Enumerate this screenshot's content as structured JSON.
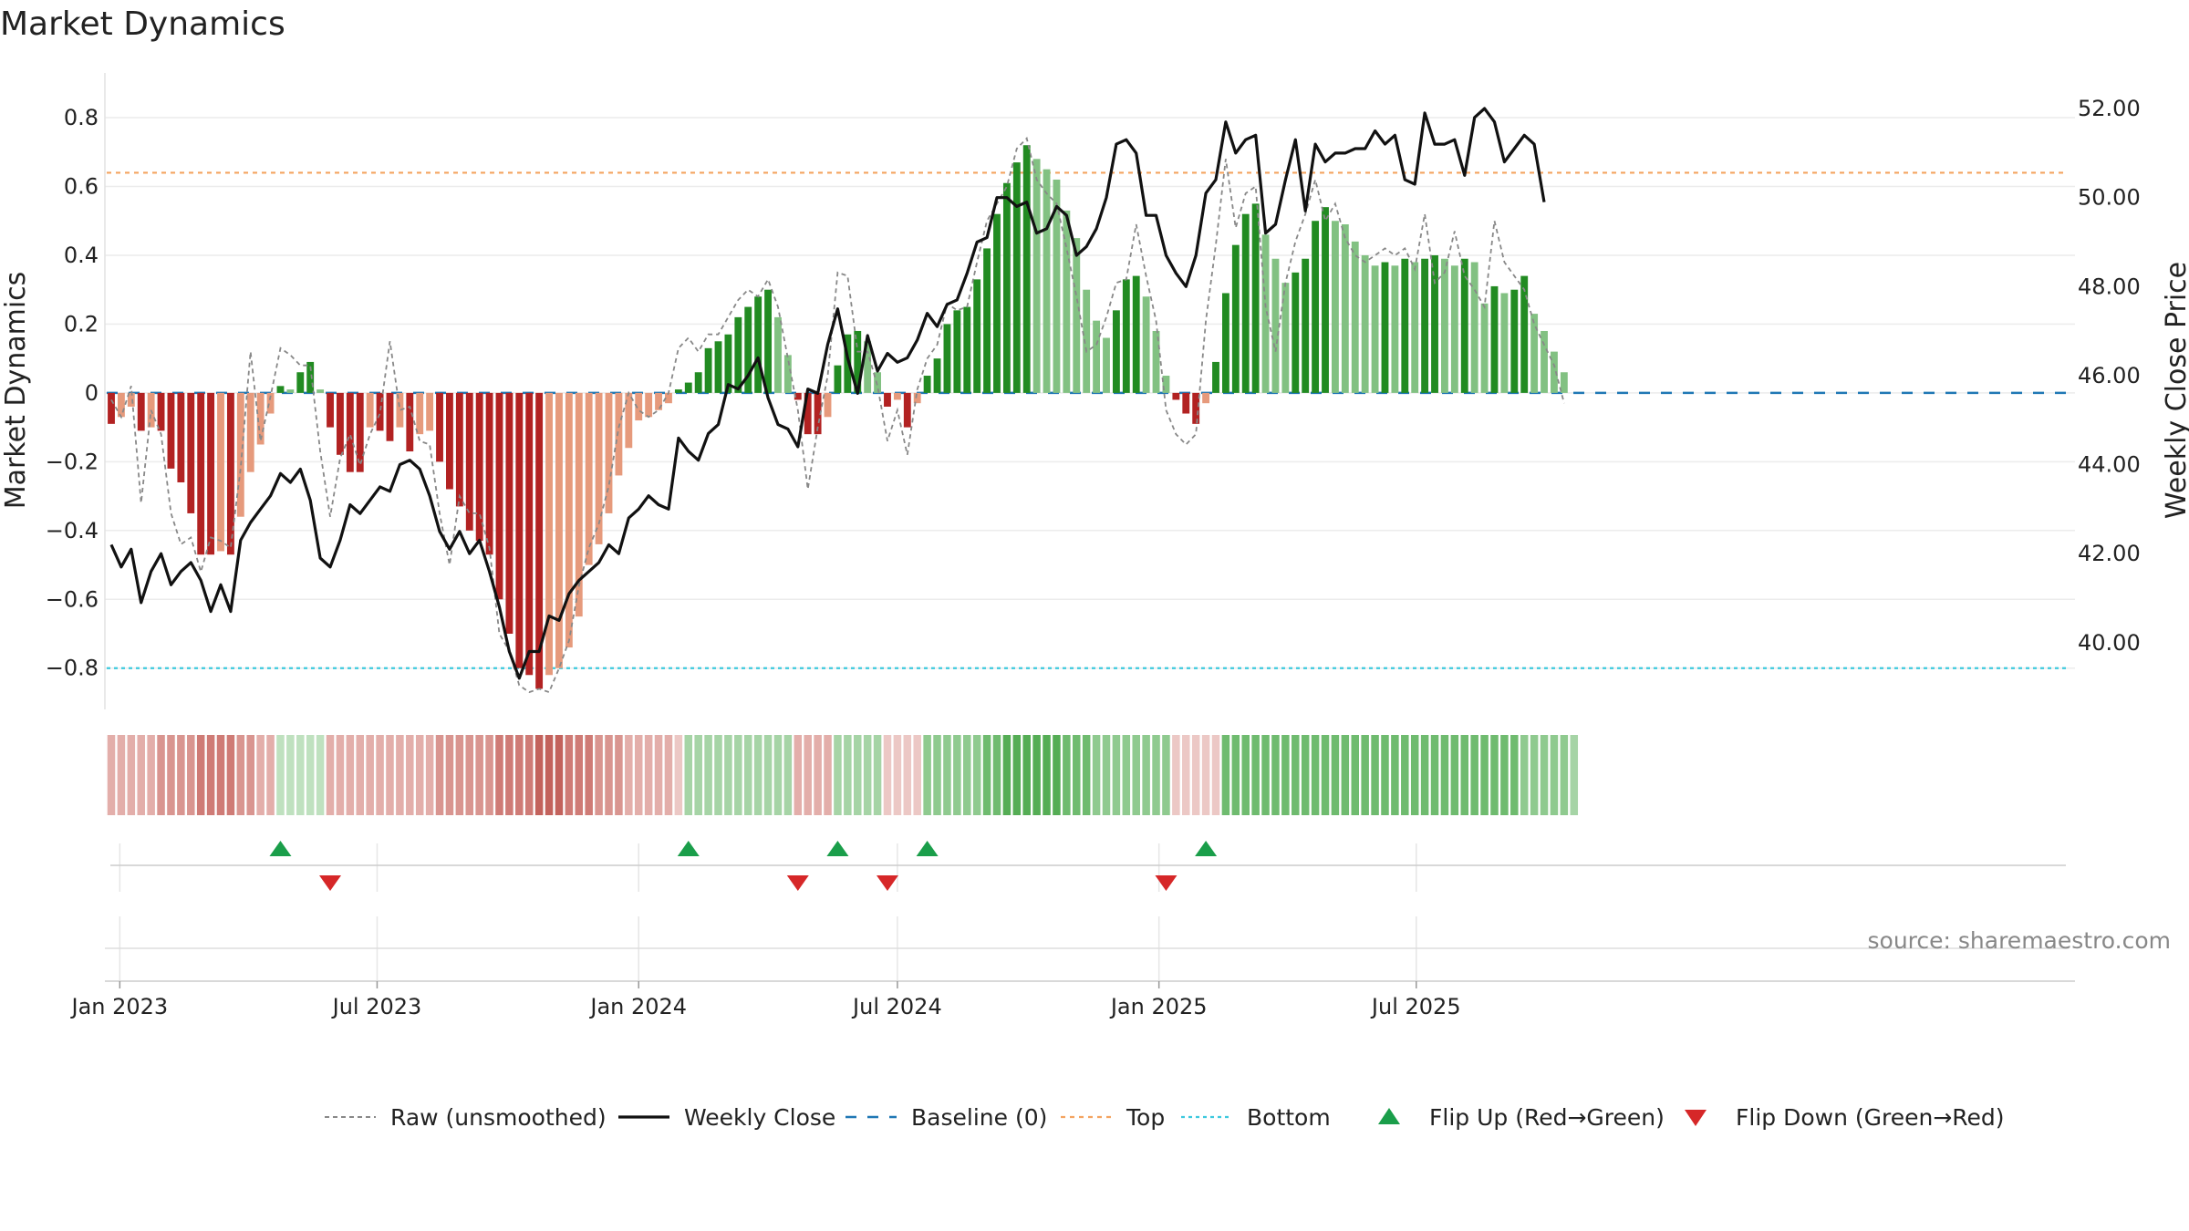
{
  "chart_data": {
    "type": "bar",
    "title": "Market Dynamics",
    "ylabel_left": "Market Dynamics",
    "ylabel_right": "Weekly Close Price",
    "source": "source: sharemaestro.com",
    "start_date": "2022-12-26",
    "left_ylim": [
      -0.92,
      0.93
    ],
    "left_ticks": [
      "0.8",
      "0.6",
      "0.4",
      "0.2",
      "0",
      "−0.2",
      "−0.4",
      "−0.6",
      "−0.8"
    ],
    "left_tick_values": [
      0.8,
      0.6,
      0.4,
      0.2,
      0,
      -0.2,
      -0.4,
      -0.6,
      -0.8
    ],
    "right_ylim": [
      38.5,
      52.8
    ],
    "right_ticks": [
      "52.00",
      "50.00",
      "48.00",
      "46.00",
      "44.00",
      "42.00",
      "40.00"
    ],
    "right_tick_values": [
      52,
      50,
      48,
      46,
      44,
      42,
      40
    ],
    "x_ticks": [
      {
        "label": "Jan 2023",
        "date": "2023-01-01"
      },
      {
        "label": "Jul 2023",
        "date": "2023-07-01"
      },
      {
        "label": "Jan 2024",
        "date": "2024-01-01"
      },
      {
        "label": "Jul 2024",
        "date": "2024-07-01"
      },
      {
        "label": "Jan 2025",
        "date": "2025-01-01"
      },
      {
        "label": "Jul 2025",
        "date": "2025-07-01"
      }
    ],
    "top_line": 0.64,
    "bottom_line": -0.8,
    "baseline": 0,
    "bars": [
      -0.09,
      -0.07,
      -0.04,
      -0.11,
      -0.1,
      -0.11,
      -0.22,
      -0.26,
      -0.35,
      -0.47,
      -0.47,
      -0.46,
      -0.47,
      -0.36,
      -0.23,
      -0.15,
      -0.06,
      0.02,
      0.01,
      0.06,
      0.09,
      0.01,
      -0.1,
      -0.18,
      -0.23,
      -0.23,
      -0.1,
      -0.11,
      -0.14,
      -0.1,
      -0.17,
      -0.12,
      -0.11,
      -0.2,
      -0.28,
      -0.33,
      -0.4,
      -0.43,
      -0.47,
      -0.6,
      -0.7,
      -0.8,
      -0.82,
      -0.86,
      -0.82,
      -0.8,
      -0.74,
      -0.65,
      -0.5,
      -0.44,
      -0.35,
      -0.24,
      -0.16,
      -0.08,
      -0.07,
      -0.05,
      -0.03,
      0.01,
      0.03,
      0.06,
      0.13,
      0.15,
      0.17,
      0.22,
      0.25,
      0.28,
      0.3,
      0.22,
      0.11,
      -0.02,
      -0.12,
      -0.12,
      -0.07,
      0.08,
      0.17,
      0.18,
      0.15,
      0.06,
      -0.04,
      -0.02,
      -0.1,
      -0.03,
      0.05,
      0.1,
      0.2,
      0.24,
      0.25,
      0.33,
      0.42,
      0.52,
      0.61,
      0.67,
      0.72,
      0.68,
      0.65,
      0.62,
      0.53,
      0.45,
      0.3,
      0.21,
      0.16,
      0.24,
      0.33,
      0.34,
      0.28,
      0.18,
      0.05,
      -0.02,
      -0.06,
      -0.09,
      -0.03,
      0.09,
      0.29,
      0.43,
      0.52,
      0.55,
      0.46,
      0.39,
      0.32,
      0.35,
      0.39,
      0.5,
      0.54,
      0.5,
      0.49,
      0.44,
      0.4,
      0.37,
      0.38,
      0.37,
      0.39,
      0.38,
      0.39,
      0.4,
      0.39,
      0.37,
      0.39,
      0.38,
      0.26,
      0.31,
      0.29,
      0.3,
      0.34,
      0.23,
      0.18,
      0.12,
      0.06
    ],
    "raw": [
      -0.02,
      -0.07,
      0.02,
      -0.32,
      -0.05,
      -0.12,
      -0.35,
      -0.44,
      -0.42,
      -0.52,
      -0.42,
      -0.43,
      -0.45,
      -0.22,
      0.12,
      -0.14,
      -0.01,
      0.13,
      0.11,
      0.08,
      0.08,
      -0.17,
      -0.36,
      -0.19,
      -0.12,
      -0.21,
      -0.12,
      -0.06,
      0.15,
      -0.05,
      -0.04,
      -0.14,
      -0.15,
      -0.35,
      -0.5,
      -0.3,
      -0.35,
      -0.35,
      -0.45,
      -0.7,
      -0.75,
      -0.85,
      -0.87,
      -0.86,
      -0.87,
      -0.8,
      -0.72,
      -0.56,
      -0.45,
      -0.38,
      -0.27,
      -0.1,
      0.0,
      -0.05,
      -0.07,
      -0.05,
      0.0,
      0.13,
      0.16,
      0.12,
      0.17,
      0.17,
      0.22,
      0.27,
      0.3,
      0.28,
      0.33,
      0.25,
      0.1,
      -0.05,
      -0.28,
      -0.1,
      0.05,
      0.35,
      0.34,
      0.12,
      0.12,
      0.02,
      -0.14,
      -0.05,
      -0.18,
      0.01,
      0.1,
      0.14,
      0.26,
      0.24,
      0.25,
      0.38,
      0.5,
      0.55,
      0.6,
      0.71,
      0.74,
      0.62,
      0.58,
      0.55,
      0.42,
      0.28,
      0.12,
      0.14,
      0.22,
      0.32,
      0.33,
      0.49,
      0.34,
      0.21,
      -0.05,
      -0.12,
      -0.15,
      -0.12,
      0.21,
      0.43,
      0.68,
      0.48,
      0.58,
      0.6,
      0.25,
      0.12,
      0.32,
      0.44,
      0.52,
      0.62,
      0.5,
      0.55,
      0.45,
      0.4,
      0.38,
      0.4,
      0.42,
      0.4,
      0.42,
      0.36,
      0.52,
      0.32,
      0.35,
      0.47,
      0.34,
      0.3,
      0.25,
      0.5,
      0.38,
      0.34,
      0.3,
      0.2,
      0.14,
      0.08,
      -0.03
    ],
    "close": [
      42.2,
      41.7,
      42.1,
      40.9,
      41.6,
      42.0,
      41.3,
      41.6,
      41.8,
      41.4,
      40.7,
      41.3,
      40.7,
      42.3,
      42.7,
      43.0,
      43.3,
      43.8,
      43.6,
      43.9,
      43.2,
      41.9,
      41.7,
      42.3,
      43.1,
      42.9,
      43.2,
      43.5,
      43.4,
      44.0,
      44.1,
      43.9,
      43.3,
      42.5,
      42.1,
      42.5,
      42.0,
      42.3,
      41.6,
      40.8,
      39.8,
      39.2,
      39.8,
      39.8,
      40.6,
      40.5,
      41.1,
      41.4,
      41.6,
      41.8,
      42.2,
      42.0,
      42.8,
      43.0,
      43.3,
      43.1,
      43.0,
      44.6,
      44.3,
      44.1,
      44.7,
      44.9,
      45.8,
      45.7,
      46.0,
      46.4,
      45.5,
      44.9,
      44.8,
      44.4,
      45.7,
      45.6,
      46.7,
      47.5,
      46.4,
      45.6,
      46.9,
      46.1,
      46.5,
      46.3,
      46.4,
      46.8,
      47.4,
      47.1,
      47.6,
      47.7,
      48.3,
      49.0,
      49.1,
      50.0,
      50.0,
      49.8,
      49.9,
      49.2,
      49.3,
      49.8,
      49.6,
      48.7,
      48.9,
      49.3,
      50.0,
      51.2,
      51.3,
      51.0,
      49.6,
      49.6,
      48.7,
      48.3,
      48.0,
      48.7,
      50.1,
      50.4,
      51.7,
      51.0,
      51.3,
      51.4,
      49.2,
      49.4,
      50.4,
      51.3,
      49.7,
      51.2,
      50.8,
      51.0,
      51.0,
      51.1,
      51.1,
      51.5,
      51.2,
      51.4,
      50.4,
      50.3,
      51.9,
      51.2,
      51.2,
      51.3,
      50.5,
      51.8,
      52.0,
      51.7,
      50.8,
      51.1,
      51.4,
      51.2,
      49.9
    ],
    "status_strip": [
      -2,
      -2,
      -2,
      -2,
      -2,
      -3,
      -3,
      -3,
      -3,
      -4,
      -4,
      -4,
      -4,
      -3,
      -3,
      -2,
      -2,
      1,
      1,
      1,
      1,
      1,
      -2,
      -2,
      -2,
      -2,
      -2,
      -2,
      -2,
      -2,
      -2,
      -2,
      -2,
      -3,
      -3,
      -3,
      -3,
      -3,
      -3,
      -4,
      -4,
      -4,
      -4,
      -5,
      -5,
      -5,
      -4,
      -4,
      -4,
      -3,
      -3,
      -3,
      -2,
      -2,
      -2,
      -2,
      -2,
      -1,
      2,
      2,
      2,
      2,
      2,
      2,
      2,
      2,
      2,
      2,
      2,
      -2,
      -2,
      -2,
      -2,
      2,
      2,
      2,
      2,
      2,
      -1,
      -1,
      -1,
      -1,
      3,
      3,
      3,
      3,
      3,
      3,
      4,
      4,
      5,
      5,
      5,
      5,
      5,
      5,
      4,
      4,
      4,
      3,
      3,
      3,
      3,
      3,
      3,
      3,
      3,
      -1,
      -1,
      -1,
      -1,
      -1,
      4,
      4,
      4,
      4,
      4,
      4,
      4,
      4,
      4,
      4,
      4,
      4,
      4,
      4,
      4,
      4,
      4,
      4,
      4,
      4,
      4,
      4,
      4,
      4,
      4,
      4,
      4,
      4,
      4,
      4,
      3,
      3,
      3,
      3,
      3,
      2
    ],
    "flip_up_weeks": [
      17,
      58,
      73,
      82,
      110
    ],
    "flip_down_weeks": [
      22,
      69,
      78,
      106
    ],
    "colors": {
      "strong_green": "#228b22",
      "light_green": "#82c182",
      "strong_red": "#b22222",
      "light_red": "#e69a7c",
      "close_line": "#111111",
      "raw_line": "#888888",
      "baseline": "#1f77b4",
      "top": "#f4a460",
      "bottom": "#3cc9de",
      "flip_up": "#1a9e4a",
      "flip_down": "#d62728"
    },
    "legend": [
      {
        "label": "Raw (unsmoothed)",
        "style": "raw"
      },
      {
        "label": "Weekly Close",
        "style": "close"
      },
      {
        "label": "Baseline (0)",
        "style": "baseline"
      },
      {
        "label": "Top",
        "style": "top"
      },
      {
        "label": "Bottom",
        "style": "bottom"
      },
      {
        "label": "Flip Up (Red→Green)",
        "style": "flip_up"
      },
      {
        "label": "Flip Down (Green→Red)",
        "style": "flip_down"
      }
    ]
  }
}
